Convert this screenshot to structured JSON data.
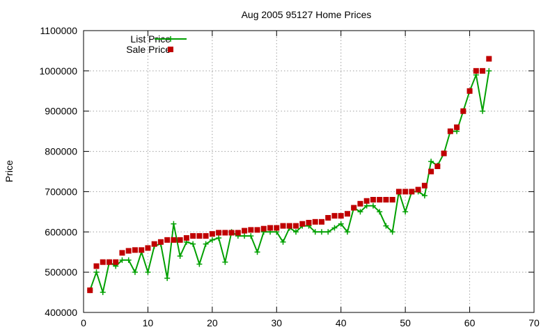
{
  "chart_data": {
    "type": "scatter",
    "title": "Aug 2005 95127 Home Prices",
    "xlabel": "",
    "ylabel": "Price",
    "xlim": [
      0,
      70
    ],
    "ylim": [
      400000,
      1100000
    ],
    "xticks": [
      0,
      10,
      20,
      30,
      40,
      50,
      60,
      70
    ],
    "yticks": [
      400000,
      500000,
      600000,
      700000,
      800000,
      900000,
      1000000,
      1100000
    ],
    "grid": true,
    "legend": "top-left",
    "series": [
      {
        "name": "List Price",
        "style": "line-with-plus",
        "color": "#00a000",
        "x": [
          1,
          2,
          3,
          4,
          5,
          6,
          7,
          8,
          9,
          10,
          11,
          12,
          13,
          14,
          15,
          16,
          17,
          18,
          19,
          20,
          21,
          22,
          23,
          24,
          25,
          26,
          27,
          28,
          29,
          30,
          31,
          32,
          33,
          34,
          35,
          36,
          37,
          38,
          39,
          40,
          41,
          42,
          43,
          44,
          45,
          46,
          47,
          48,
          49,
          50,
          51,
          52,
          53,
          54,
          55,
          56,
          57,
          58,
          59,
          60,
          61,
          62,
          63
        ],
        "y": [
          455000,
          500000,
          450000,
          525000,
          515000,
          530000,
          530000,
          500000,
          550000,
          500000,
          565000,
          570000,
          485000,
          620000,
          540000,
          575000,
          570000,
          520000,
          570000,
          580000,
          585000,
          525000,
          600000,
          590000,
          590000,
          590000,
          550000,
          600000,
          600000,
          600000,
          575000,
          610000,
          600000,
          615000,
          615000,
          600000,
          600000,
          600000,
          610000,
          620000,
          600000,
          660000,
          650000,
          665000,
          665000,
          650000,
          615000,
          600000,
          700000,
          650000,
          700000,
          700000,
          690000,
          775000,
          765000,
          795000,
          850000,
          850000,
          900000,
          950000,
          990000,
          900000,
          1000000
        ]
      },
      {
        "name": "Sale Price",
        "style": "square-markers",
        "color": "#c00000",
        "x": [
          1,
          2,
          3,
          4,
          5,
          6,
          7,
          8,
          9,
          10,
          11,
          12,
          13,
          14,
          15,
          16,
          17,
          18,
          19,
          20,
          21,
          22,
          23,
          24,
          25,
          26,
          27,
          28,
          29,
          30,
          31,
          32,
          33,
          34,
          35,
          36,
          37,
          38,
          39,
          40,
          41,
          42,
          43,
          44,
          45,
          46,
          47,
          48,
          49,
          50,
          51,
          52,
          53,
          54,
          55,
          56,
          57,
          58,
          59,
          60,
          61,
          62,
          63
        ],
        "y": [
          455000,
          515000,
          525000,
          525000,
          525000,
          548000,
          553000,
          555000,
          555000,
          560000,
          570000,
          575000,
          580000,
          580000,
          580000,
          585000,
          590000,
          590000,
          590000,
          595000,
          598000,
          598000,
          598000,
          598000,
          603000,
          605000,
          605000,
          608000,
          610000,
          610000,
          615000,
          615000,
          615000,
          620000,
          623000,
          625000,
          625000,
          635000,
          640000,
          640000,
          645000,
          660000,
          670000,
          677000,
          680000,
          680000,
          680000,
          680000,
          700000,
          700000,
          700000,
          705000,
          715000,
          750000,
          763000,
          795000,
          850000,
          860000,
          900000,
          950000,
          1000000,
          1000000,
          1030000
        ]
      }
    ]
  }
}
